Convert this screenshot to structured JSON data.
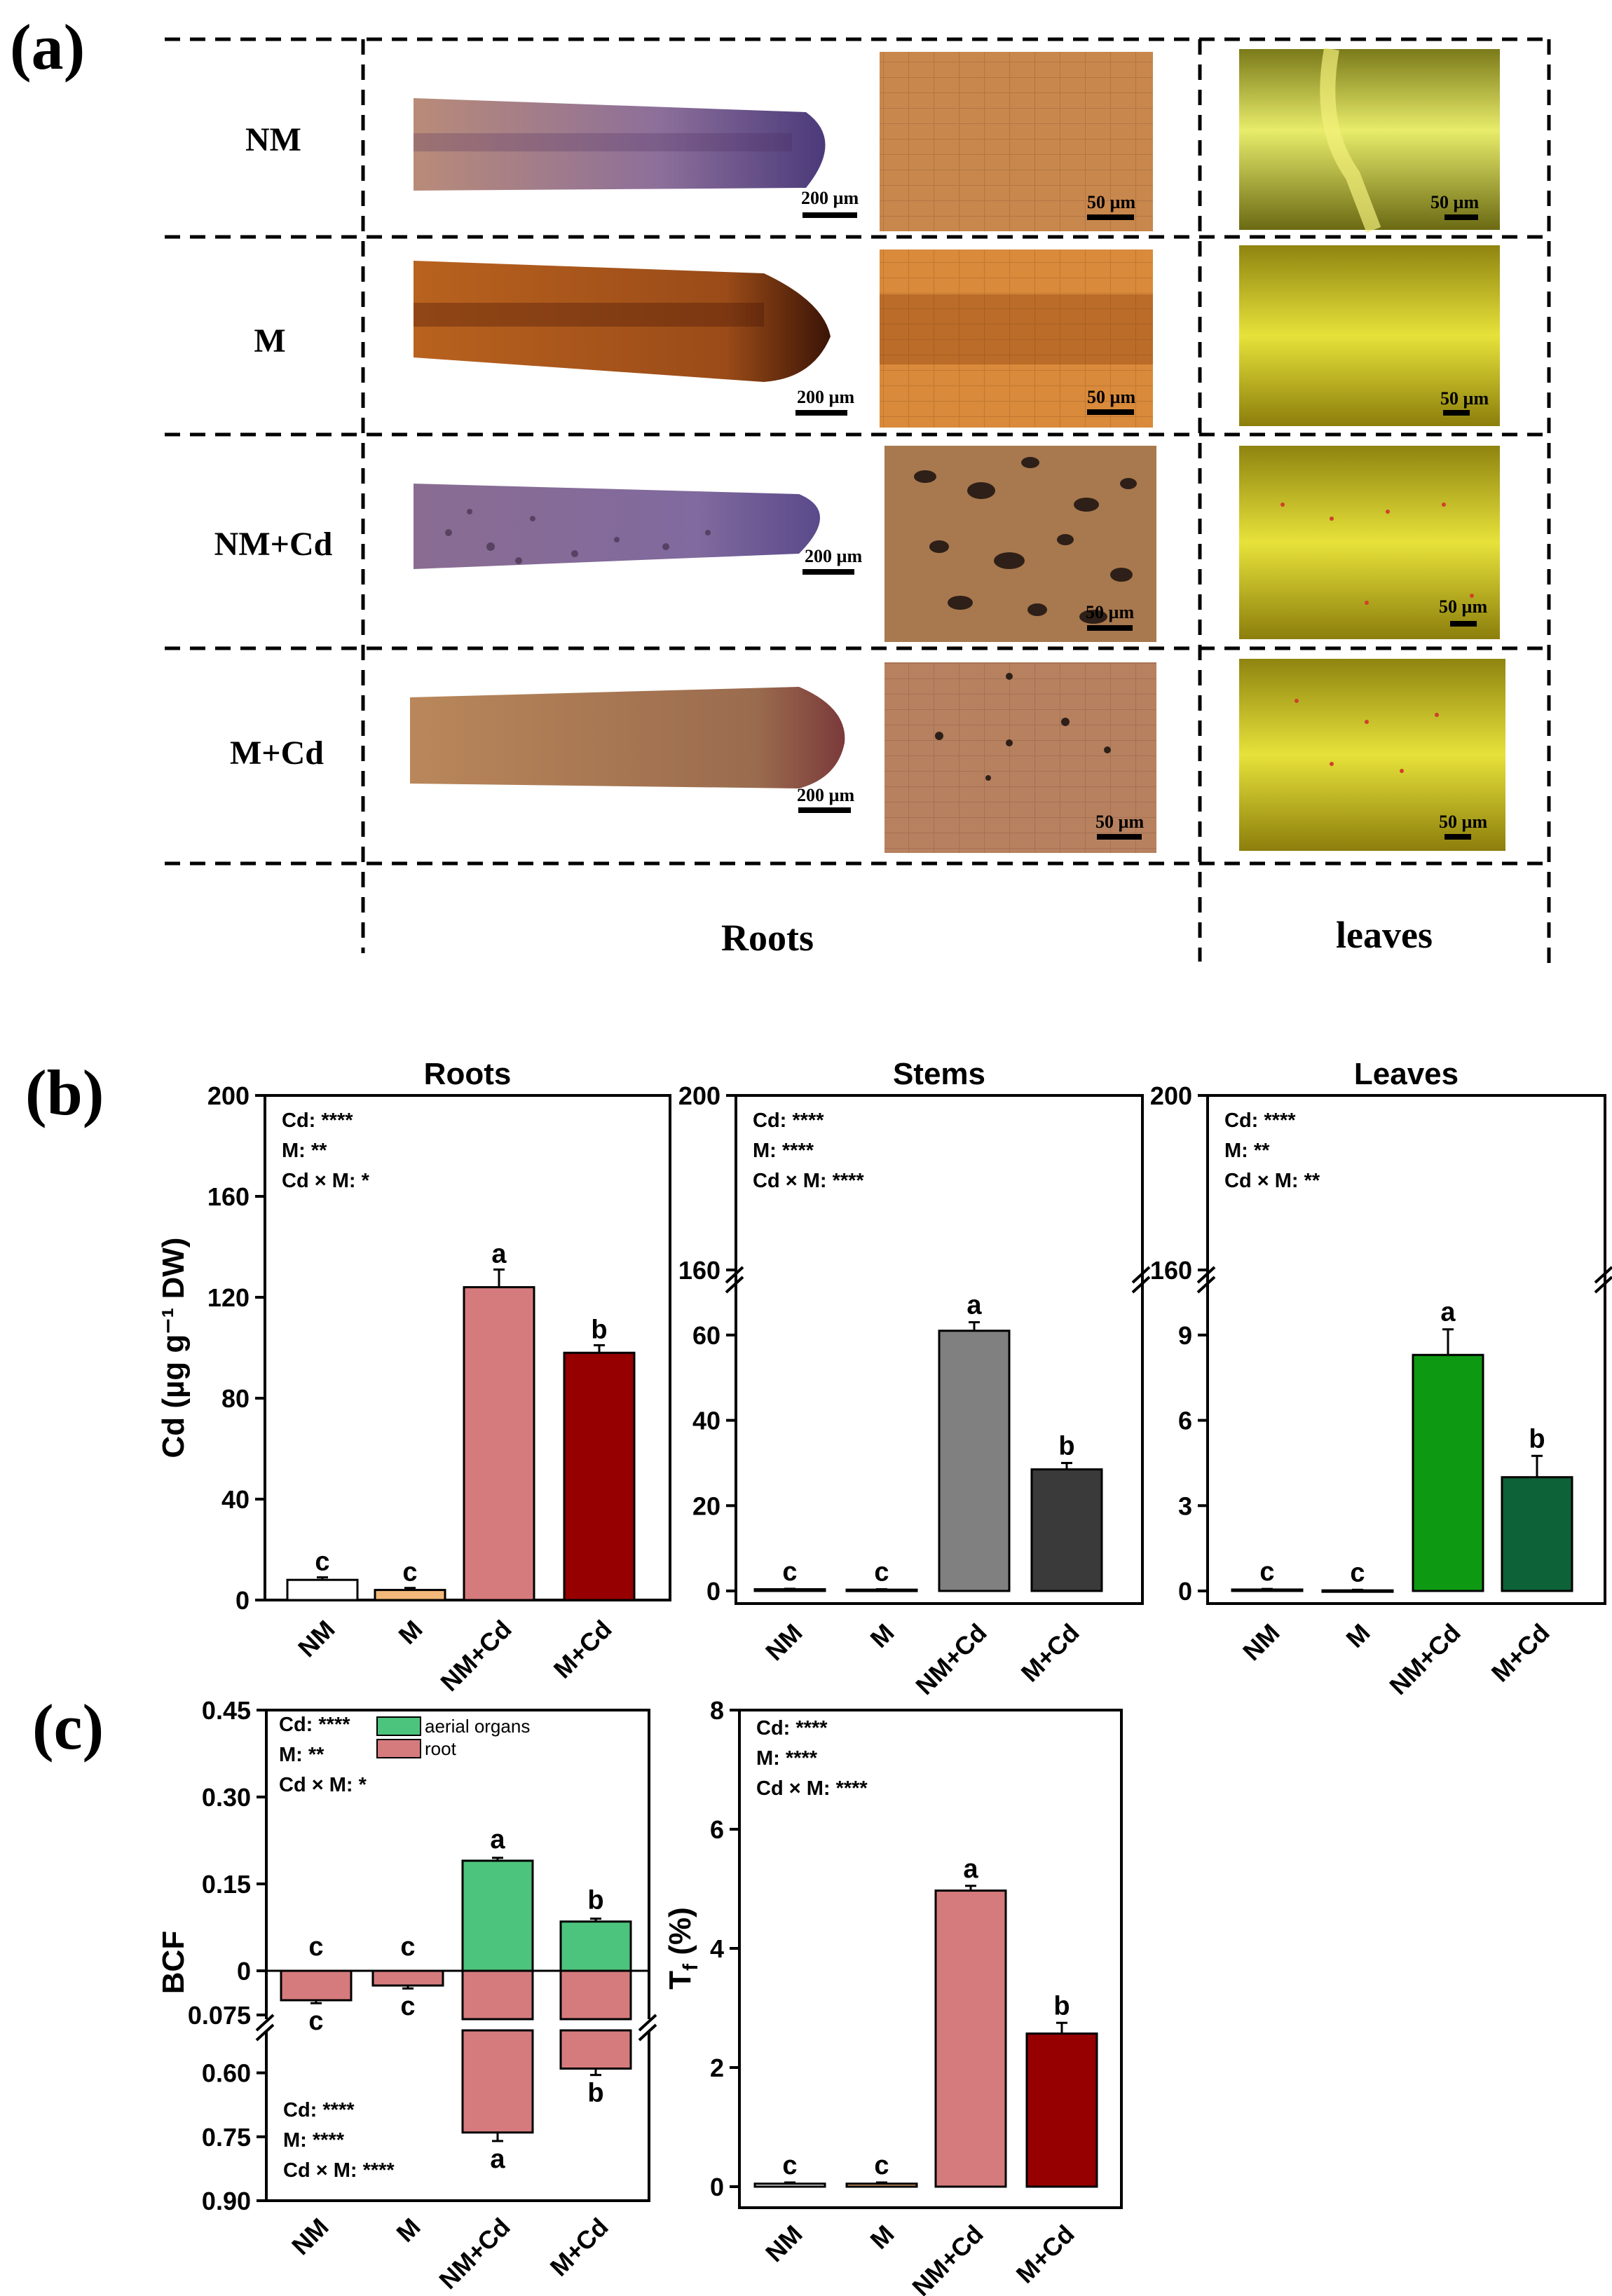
{
  "figure": {
    "panel_a_label": "(a)",
    "panel_b_label": "(b)",
    "panel_c_label": "(c)",
    "col_roots": "Roots",
    "col_leaves": "leaves",
    "row_labels": [
      "NM",
      "M",
      "NM+Cd",
      "M+Cd"
    ],
    "scalebar_200": "200 µm",
    "scalebar_50": "50 µm"
  },
  "chart_data": [
    {
      "id": "roots",
      "type": "bar",
      "title": "Roots",
      "ylabel": "Cd (µg g⁻¹ DW)",
      "categories": [
        "NM",
        "M",
        "NM+Cd",
        "M+Cd"
      ],
      "values": [
        8,
        4,
        124,
        98
      ],
      "errors": [
        1,
        0.8,
        7,
        3
      ],
      "letters": [
        "c",
        "c",
        "a",
        "b"
      ],
      "colors": [
        "#ffffff",
        "#f4b97a",
        "#d57b7d",
        "#960000"
      ],
      "yticks": [
        "0",
        "40",
        "80",
        "120",
        "160",
        "200"
      ],
      "ylim": [
        0,
        200
      ],
      "stats": [
        "Cd: ****",
        "M: **",
        "Cd × M: *"
      ]
    },
    {
      "id": "stems",
      "type": "bar",
      "title": "Stems",
      "categories": [
        "NM",
        "M",
        "NM+Cd",
        "M+Cd"
      ],
      "values": [
        0.4,
        0.3,
        61,
        28.5
      ],
      "errors": [
        0.1,
        0.1,
        2,
        1.5
      ],
      "letters": [
        "c",
        "c",
        "a",
        "b"
      ],
      "colors": [
        "#ffffff",
        "#d9d9d9",
        "#808080",
        "#3a3a3a"
      ],
      "yticks_low": [
        "0",
        "20",
        "40",
        "60"
      ],
      "yticks_high": [
        "160",
        "200"
      ],
      "ylim_low": [
        0,
        70
      ],
      "ylim_high": [
        160,
        200
      ],
      "stats": [
        "Cd: ****",
        "M: ****",
        "Cd × M: ****"
      ]
    },
    {
      "id": "leaves",
      "type": "bar",
      "title": "Leaves",
      "categories": [
        "NM",
        "M",
        "NM+Cd",
        "M+Cd"
      ],
      "values": [
        0.05,
        0.02,
        8.3,
        4.0
      ],
      "errors": [
        0.02,
        0.02,
        0.9,
        0.75
      ],
      "letters": [
        "c",
        "c",
        "a",
        "b"
      ],
      "colors": [
        "#ffffff",
        "#8ae9a8",
        "#0d9a12",
        "#0e6238"
      ],
      "yticks_low": [
        "0",
        "3",
        "6",
        "9"
      ],
      "yticks_high": [
        "160",
        "200"
      ],
      "ylim_low": [
        0,
        10.5
      ],
      "ylim_high": [
        160,
        200
      ],
      "stats": [
        "Cd: ****",
        "M: **",
        "Cd × M: **"
      ]
    },
    {
      "id": "bcf",
      "type": "bar",
      "ylabel": "BCF",
      "categories": [
        "NM",
        "M",
        "NM+Cd",
        "M+Cd"
      ],
      "series": [
        {
          "name": "aerial organs",
          "values": [
            0,
            0,
            0.19,
            0.085
          ],
          "errors": [
            0,
            0,
            0.005,
            0.005
          ],
          "letters": [
            "c",
            "c",
            "a",
            "b"
          ],
          "color": "#4dc47d"
        },
        {
          "name": "root",
          "values": [
            0.05,
            0.025,
            0.74,
            0.59
          ],
          "errors": [
            0.005,
            0.005,
            0.02,
            0.015
          ],
          "letters": [
            "c",
            "c",
            "a",
            "b"
          ],
          "color": "#d57b7d"
        }
      ],
      "yticks_upper": [
        "0.45",
        "0.30",
        "0.15",
        "0"
      ],
      "yticks_lower": [
        "0.075",
        "0.60",
        "0.75",
        "0.90"
      ],
      "stats_upper": [
        "Cd: ****",
        "M: **",
        "Cd × M: *"
      ],
      "stats_lower": [
        "Cd: ****",
        "M: ****",
        "Cd × M: ****"
      ]
    },
    {
      "id": "tf",
      "type": "bar",
      "ylabel": "Tf (%)",
      "categories": [
        "NM",
        "M",
        "NM+Cd",
        "M+Cd"
      ],
      "values": [
        0.05,
        0.05,
        4.97,
        2.57
      ],
      "errors": [
        0.02,
        0.02,
        0.08,
        0.18
      ],
      "letters": [
        "c",
        "c",
        "a",
        "b"
      ],
      "colors": [
        "#ffffff",
        "#f4b97a",
        "#d57b7d",
        "#960000"
      ],
      "yticks": [
        "0",
        "2",
        "4",
        "6",
        "8"
      ],
      "ylim": [
        0,
        8
      ],
      "stats": [
        "Cd: ****",
        "M: ****",
        "Cd × M: ****"
      ]
    }
  ]
}
